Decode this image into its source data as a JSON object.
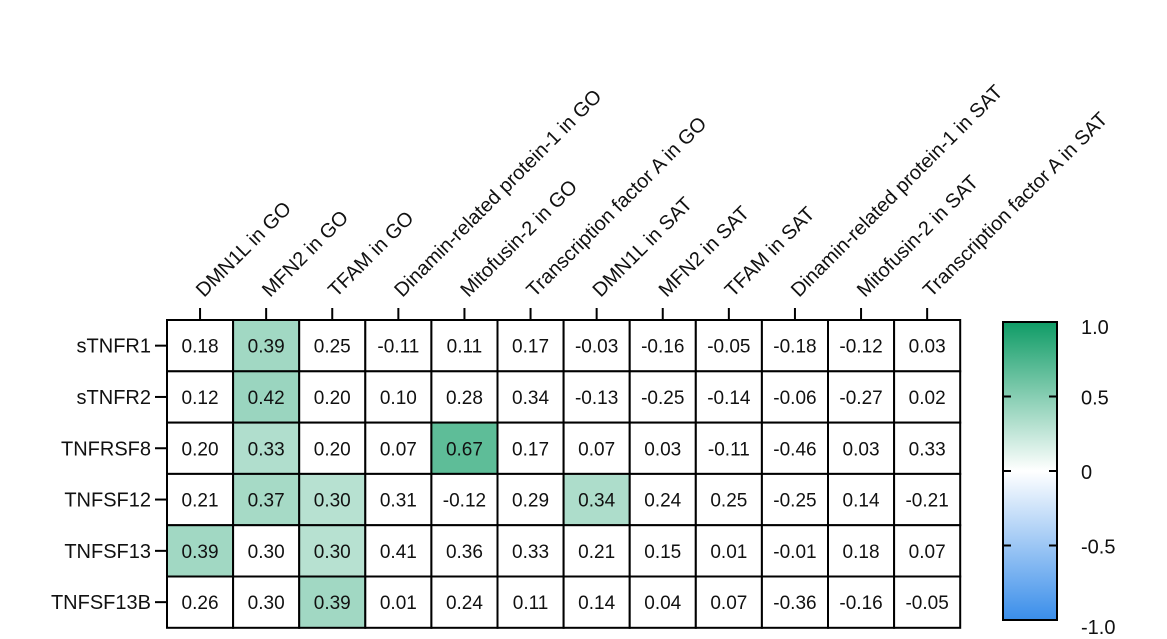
{
  "chart_data": {
    "type": "heatmap",
    "columns": [
      "DMN1L in GO",
      "MFN2 in GO",
      "TFAM in GO",
      "Dinamin-related protein-1 in GO",
      "Mitofusin-2 in GO",
      "Transcription factor A in GO",
      "DMN1L in SAT",
      "MFN2 in SAT",
      "TFAM in SAT",
      "Dinamin-related protein-1 in SAT",
      "Mitofusin-2 in SAT",
      "Transcription factor A in SAT"
    ],
    "rows": [
      "sTNFR1",
      "sTNFR2",
      "TNFRSF8",
      "TNFSF12",
      "TNFSF13",
      "TNFSF13B"
    ],
    "values": [
      [
        0.18,
        0.39,
        0.25,
        -0.11,
        0.11,
        0.17,
        -0.03,
        -0.16,
        -0.05,
        -0.18,
        -0.12,
        0.03
      ],
      [
        0.12,
        0.42,
        0.2,
        0.1,
        0.28,
        0.34,
        -0.13,
        -0.25,
        -0.14,
        -0.06,
        -0.27,
        0.02
      ],
      [
        0.2,
        0.33,
        0.2,
        0.07,
        0.67,
        0.17,
        0.07,
        0.03,
        -0.11,
        -0.46,
        0.03,
        0.33
      ],
      [
        0.21,
        0.37,
        0.3,
        0.31,
        -0.12,
        0.29,
        0.34,
        0.24,
        0.25,
        -0.25,
        0.14,
        -0.21
      ],
      [
        0.39,
        0.3,
        0.3,
        0.41,
        0.36,
        0.33,
        0.21,
        0.15,
        0.01,
        -0.01,
        0.18,
        0.07
      ],
      [
        0.26,
        0.3,
        0.39,
        0.01,
        0.24,
        0.11,
        0.14,
        0.04,
        0.07,
        -0.36,
        -0.16,
        -0.05
      ]
    ],
    "highlighted": [
      [
        0,
        1
      ],
      [
        1,
        1
      ],
      [
        2,
        1
      ],
      [
        2,
        4
      ],
      [
        3,
        1
      ],
      [
        3,
        2
      ],
      [
        3,
        6
      ],
      [
        4,
        0
      ],
      [
        4,
        2
      ],
      [
        5,
        2
      ]
    ],
    "colorscale": {
      "min": -1.0,
      "max": 1.0,
      "colors": {
        "positive": "#0f9c66",
        "zero": "#ffffff",
        "negative": "#3a8eea"
      },
      "ticks": [
        1.0,
        0.5,
        0,
        -0.5,
        -1.0
      ],
      "tick_labels": [
        "1.0",
        "0.5",
        "0",
        "-0.5",
        "-1.0"
      ]
    },
    "grid": true
  }
}
